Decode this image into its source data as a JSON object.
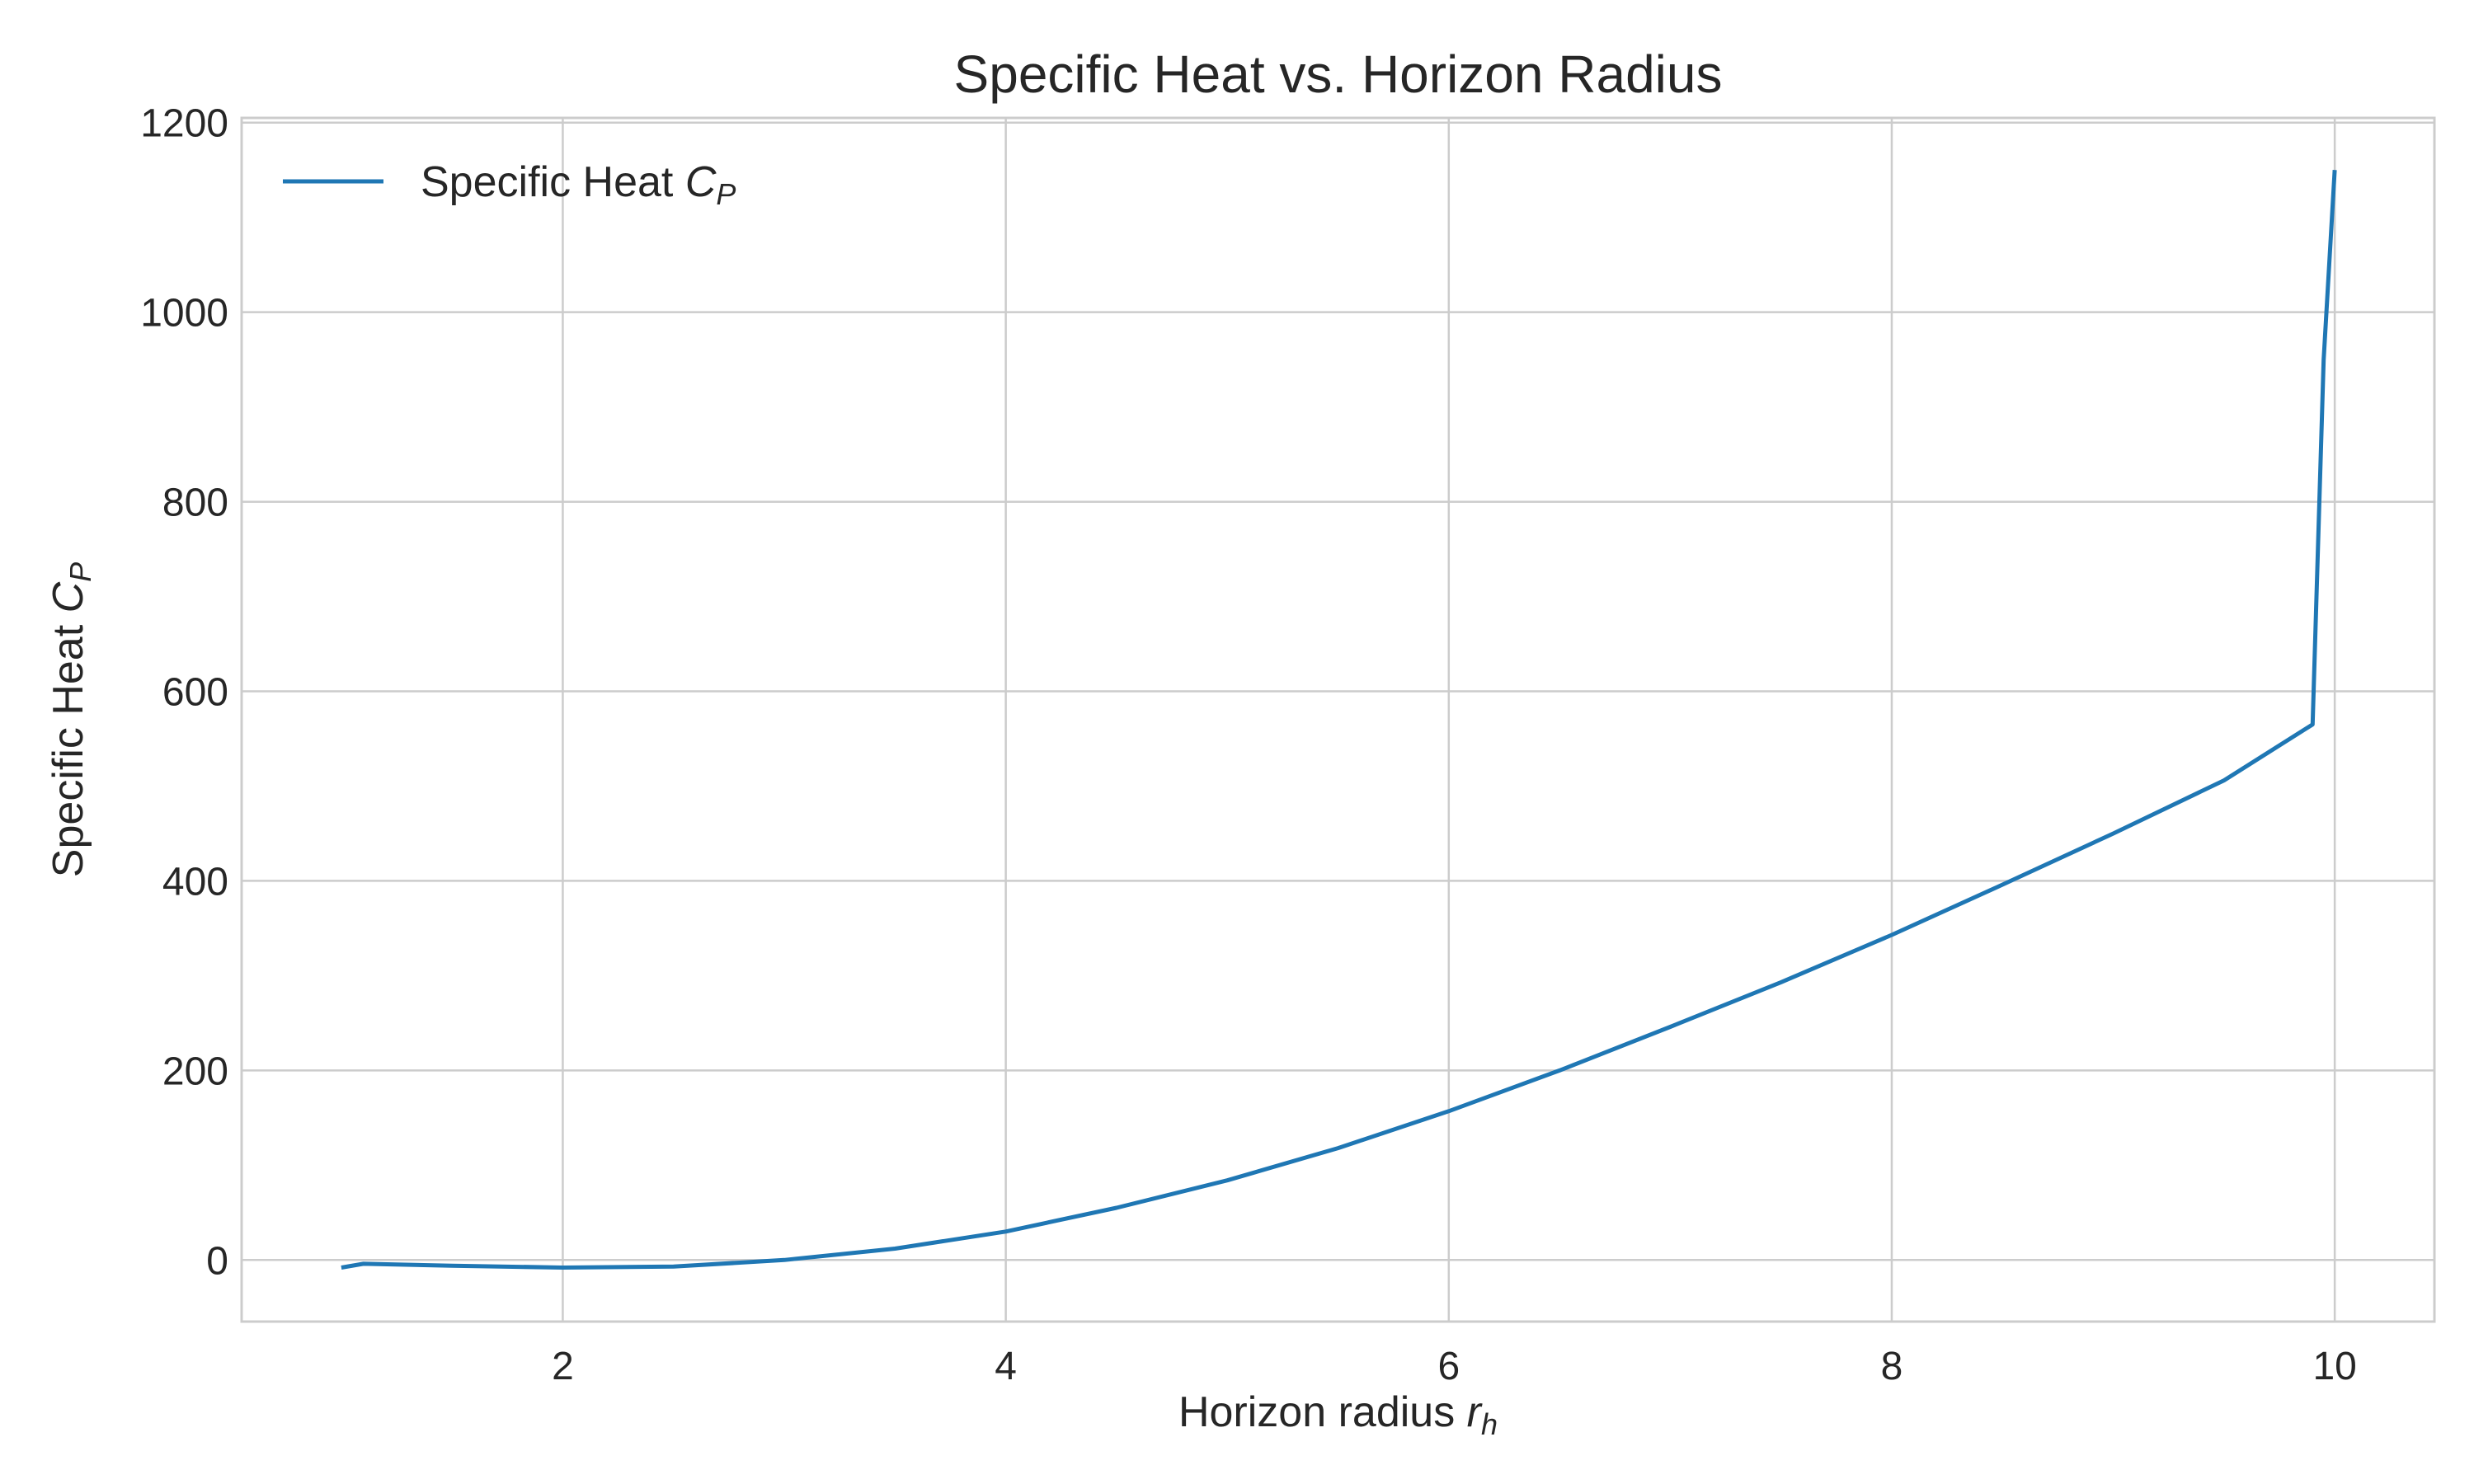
{
  "chart_data": {
    "type": "line",
    "title": "Specific Heat vs. Horizon Radius",
    "xlabel": {
      "main": "Horizon radius ",
      "var": "r",
      "sub": "h"
    },
    "ylabel": {
      "main": "Specific Heat ",
      "var": "C",
      "sub": "P"
    },
    "xlim": [
      0.55,
      10.45
    ],
    "ylim": [
      -65,
      1205
    ],
    "xticks": [
      2,
      4,
      6,
      8,
      10
    ],
    "yticks": [
      0,
      200,
      400,
      600,
      800,
      1000,
      1200
    ],
    "xtick_labels": [
      "2",
      "4",
      "6",
      "8",
      "10"
    ],
    "ytick_labels": [
      "0",
      "200",
      "400",
      "600",
      "800",
      "1000",
      "1200"
    ],
    "grid": true,
    "legend_position": "top-left",
    "series": [
      {
        "name": {
          "main": "Specific Heat ",
          "var": "C",
          "sub": "P"
        },
        "color": "#1f77b4",
        "x": [
          1.0,
          1.1,
          1.5,
          2.0,
          2.5,
          3.0,
          3.5,
          4.0,
          4.5,
          5.0,
          5.5,
          6.0,
          6.5,
          7.0,
          7.5,
          8.0,
          8.5,
          9.0,
          9.5,
          9.9,
          9.95,
          10.0
        ],
        "y": [
          -8,
          -4,
          -6,
          -8,
          -7,
          0,
          12,
          30,
          55,
          84,
          118,
          157,
          200,
          246,
          293,
          343,
          396,
          450,
          506,
          565,
          950,
          1150
        ]
      }
    ]
  }
}
